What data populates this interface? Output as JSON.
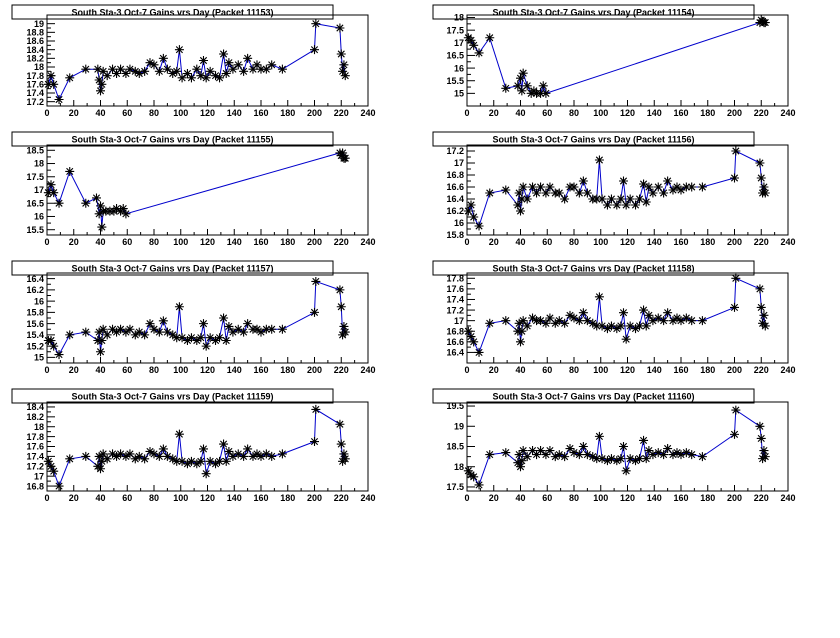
{
  "chart_data": [
    {
      "type": "line",
      "title": "South Sta-3 Oct-7 Gains vrs Day (Packet 11153)",
      "xlim": [
        0,
        240
      ],
      "xticks": [
        0,
        20,
        40,
        60,
        80,
        100,
        120,
        140,
        160,
        180,
        200,
        220,
        240
      ],
      "ylim": [
        17.1,
        19.2
      ],
      "yticks": [
        "17.2",
        "17.4",
        "17.6",
        "17.8",
        "18",
        "18.2",
        "18.4",
        "18.6",
        "18.8",
        "19"
      ],
      "ytick_values": [
        17.2,
        17.4,
        17.6,
        17.8,
        18.0,
        18.2,
        18.4,
        18.6,
        18.8,
        19.0
      ],
      "x": [
        1,
        3,
        5,
        9,
        17,
        29,
        38,
        39,
        40,
        41,
        42,
        45,
        49,
        52,
        55,
        59,
        62,
        66,
        69,
        73,
        77,
        80,
        84,
        87,
        90,
        94,
        97,
        99,
        101,
        105,
        108,
        112,
        115,
        117,
        119,
        122,
        126,
        129,
        132,
        134,
        136,
        139,
        143,
        147,
        150,
        154,
        157,
        160,
        164,
        168,
        176,
        200,
        201,
        219,
        220,
        221,
        222,
        223
      ],
      "y": [
        17.6,
        17.8,
        17.6,
        17.25,
        17.75,
        17.95,
        17.95,
        17.7,
        17.45,
        17.6,
        17.9,
        17.8,
        17.95,
        17.85,
        17.95,
        17.85,
        17.95,
        17.9,
        17.85,
        17.9,
        18.1,
        18.05,
        17.9,
        18.2,
        17.95,
        17.85,
        17.9,
        18.4,
        17.75,
        17.85,
        17.75,
        17.95,
        17.8,
        18.15,
        17.75,
        17.9,
        17.8,
        17.75,
        18.3,
        17.85,
        18.1,
        17.95,
        18.05,
        17.9,
        18.2,
        17.95,
        18.05,
        17.95,
        17.95,
        18.05,
        17.95,
        18.4,
        19.0,
        18.9,
        18.3,
        17.9,
        18.05,
        17.8
      ]
    },
    {
      "type": "line",
      "title": "South Sta-3 Oct-7 Gains vrs Day (Packet 11154)",
      "xlim": [
        0,
        240
      ],
      "xticks": [
        0,
        20,
        40,
        60,
        80,
        100,
        120,
        140,
        160,
        180,
        200,
        220,
        240
      ],
      "ylim": [
        14.5,
        18.1
      ],
      "yticks": [
        "15",
        "15.5",
        "16",
        "16.5",
        "17",
        "17.5",
        "18"
      ],
      "ytick_values": [
        15,
        15.5,
        16,
        16.5,
        17,
        17.5,
        18
      ],
      "x": [
        1,
        3,
        5,
        9,
        17,
        29,
        38,
        40,
        41,
        42,
        45,
        48,
        50,
        52,
        55,
        57,
        59,
        219,
        220,
        221,
        222,
        223
      ],
      "y": [
        17.2,
        17.1,
        16.9,
        16.6,
        17.2,
        15.2,
        15.3,
        15.6,
        15.1,
        15.8,
        15.3,
        15.0,
        15.1,
        15.0,
        15.0,
        15.3,
        15.0,
        17.8,
        17.9,
        17.85,
        17.8,
        17.8
      ]
    },
    {
      "type": "line",
      "title": "South Sta-3 Oct-7 Gains vrs Day (Packet 11155)",
      "xlim": [
        0,
        240
      ],
      "xticks": [
        0,
        20,
        40,
        60,
        80,
        100,
        120,
        140,
        160,
        180,
        200,
        220,
        240
      ],
      "ylim": [
        15.3,
        18.7
      ],
      "yticks": [
        "15.5",
        "16",
        "16.5",
        "17",
        "17.5",
        "18",
        "18.5"
      ],
      "ytick_values": [
        15.5,
        16,
        16.5,
        17,
        17.5,
        18,
        18.5
      ],
      "x": [
        1,
        3,
        5,
        9,
        17,
        29,
        37,
        39,
        40,
        41,
        42,
        44,
        47,
        50,
        52,
        55,
        57,
        59,
        219,
        220,
        221,
        222,
        223
      ],
      "y": [
        16.9,
        17.2,
        16.9,
        16.5,
        17.7,
        16.5,
        16.7,
        16.1,
        16.4,
        15.6,
        16.2,
        16.2,
        16.2,
        16.2,
        16.3,
        16.2,
        16.3,
        16.1,
        18.4,
        18.3,
        18.4,
        18.2,
        18.2
      ]
    },
    {
      "type": "line",
      "title": "South Sta-3 Oct-7 Gains vrs Day (Packet 11156)",
      "xlim": [
        0,
        240
      ],
      "xticks": [
        0,
        20,
        40,
        60,
        80,
        100,
        120,
        140,
        160,
        180,
        200,
        220,
        240
      ],
      "ylim": [
        15.8,
        17.3
      ],
      "yticks": [
        "15.8",
        "16",
        "16.2",
        "16.4",
        "16.6",
        "16.8",
        "17",
        "17.2"
      ],
      "ytick_values": [
        15.8,
        16.0,
        16.2,
        16.4,
        16.6,
        16.8,
        17.0,
        17.2
      ],
      "x": [
        1,
        3,
        5,
        9,
        17,
        29,
        38,
        39,
        40,
        41,
        42,
        45,
        49,
        52,
        55,
        59,
        62,
        66,
        69,
        73,
        77,
        80,
        84,
        87,
        90,
        94,
        97,
        99,
        101,
        105,
        108,
        112,
        115,
        117,
        119,
        122,
        126,
        129,
        132,
        134,
        136,
        139,
        143,
        147,
        150,
        154,
        157,
        160,
        164,
        168,
        176,
        200,
        201,
        219,
        220,
        221,
        222,
        223
      ],
      "y": [
        16.2,
        16.3,
        16.1,
        15.95,
        16.5,
        16.55,
        16.3,
        16.5,
        16.2,
        16.4,
        16.6,
        16.4,
        16.6,
        16.5,
        16.6,
        16.5,
        16.6,
        16.5,
        16.5,
        16.4,
        16.6,
        16.6,
        16.5,
        16.7,
        16.5,
        16.4,
        16.4,
        17.05,
        16.4,
        16.3,
        16.4,
        16.3,
        16.4,
        16.7,
        16.3,
        16.4,
        16.3,
        16.4,
        16.65,
        16.35,
        16.6,
        16.5,
        16.6,
        16.5,
        16.7,
        16.55,
        16.6,
        16.55,
        16.6,
        16.6,
        16.6,
        16.75,
        17.2,
        17.0,
        16.75,
        16.5,
        16.6,
        16.5
      ]
    },
    {
      "type": "line",
      "title": "South Sta-3 Oct-7 Gains vrs Day (Packet 11157)",
      "xlim": [
        0,
        240
      ],
      "xticks": [
        0,
        20,
        40,
        60,
        80,
        100,
        120,
        140,
        160,
        180,
        200,
        220,
        240
      ],
      "ylim": [
        14.9,
        16.5
      ],
      "yticks": [
        "15",
        "15.2",
        "15.4",
        "15.6",
        "15.8",
        "16",
        "16.2",
        "16.4"
      ],
      "ytick_values": [
        15.0,
        15.2,
        15.4,
        15.6,
        15.8,
        16.0,
        16.2,
        16.4
      ],
      "x": [
        1,
        3,
        5,
        9,
        17,
        29,
        38,
        39,
        40,
        41,
        42,
        45,
        49,
        52,
        55,
        59,
        62,
        66,
        69,
        73,
        77,
        80,
        84,
        87,
        90,
        94,
        97,
        99,
        101,
        105,
        108,
        112,
        115,
        117,
        119,
        122,
        126,
        129,
        132,
        134,
        136,
        139,
        143,
        147,
        150,
        154,
        157,
        160,
        164,
        168,
        176,
        200,
        201,
        219,
        220,
        221,
        222,
        223
      ],
      "y": [
        15.3,
        15.3,
        15.2,
        15.05,
        15.4,
        15.45,
        15.3,
        15.45,
        15.1,
        15.3,
        15.5,
        15.4,
        15.5,
        15.45,
        15.5,
        15.45,
        15.5,
        15.4,
        15.45,
        15.4,
        15.6,
        15.5,
        15.45,
        15.65,
        15.45,
        15.4,
        15.35,
        15.9,
        15.35,
        15.3,
        15.35,
        15.3,
        15.35,
        15.6,
        15.2,
        15.35,
        15.3,
        15.35,
        15.7,
        15.3,
        15.55,
        15.45,
        15.5,
        15.45,
        15.6,
        15.5,
        15.5,
        15.45,
        15.5,
        15.5,
        15.5,
        15.8,
        16.35,
        16.2,
        15.9,
        15.4,
        15.55,
        15.45
      ]
    },
    {
      "type": "line",
      "title": "South Sta-3 Oct-7 Gains vrs Day (Packet 11158)",
      "xlim": [
        0,
        240
      ],
      "xticks": [
        0,
        20,
        40,
        60,
        80,
        100,
        120,
        140,
        160,
        180,
        200,
        220,
        240
      ],
      "ylim": [
        16.2,
        17.9
      ],
      "yticks": [
        "16.4",
        "16.6",
        "16.8",
        "17",
        "17.2",
        "17.4",
        "17.6",
        "17.8"
      ],
      "ytick_values": [
        16.4,
        16.6,
        16.8,
        17.0,
        17.2,
        17.4,
        17.6,
        17.8
      ],
      "x": [
        1,
        3,
        5,
        9,
        17,
        29,
        38,
        39,
        40,
        41,
        42,
        45,
        49,
        52,
        55,
        59,
        62,
        66,
        69,
        73,
        77,
        80,
        84,
        87,
        90,
        94,
        97,
        99,
        101,
        105,
        108,
        112,
        115,
        117,
        119,
        122,
        126,
        129,
        132,
        134,
        136,
        139,
        143,
        147,
        150,
        154,
        157,
        160,
        164,
        168,
        176,
        200,
        201,
        219,
        220,
        221,
        222,
        223
      ],
      "y": [
        16.8,
        16.7,
        16.6,
        16.4,
        16.95,
        17.0,
        16.8,
        16.95,
        16.6,
        16.8,
        17.0,
        16.9,
        17.05,
        17.0,
        17.0,
        16.95,
        17.05,
        16.95,
        17.0,
        16.95,
        17.1,
        17.05,
        17.0,
        17.15,
        17.0,
        16.95,
        16.9,
        17.45,
        16.9,
        16.85,
        16.9,
        16.85,
        16.9,
        17.15,
        16.65,
        16.9,
        16.85,
        16.9,
        17.2,
        16.9,
        17.1,
        17.0,
        17.05,
        17.0,
        17.15,
        17.0,
        17.05,
        17.0,
        17.05,
        17.0,
        17.0,
        17.25,
        17.8,
        17.6,
        17.25,
        16.95,
        17.1,
        16.9
      ]
    },
    {
      "type": "line",
      "title": "South Sta-3 Oct-7 Gains vrs Day (Packet 11159)",
      "xlim": [
        0,
        240
      ],
      "xticks": [
        0,
        20,
        40,
        60,
        80,
        100,
        120,
        140,
        160,
        180,
        200,
        220,
        240
      ],
      "ylim": [
        16.7,
        18.5
      ],
      "yticks": [
        "16.8",
        "17",
        "17.2",
        "17.4",
        "17.6",
        "17.8",
        "18",
        "18.2",
        "18.4"
      ],
      "ytick_values": [
        16.8,
        17.0,
        17.2,
        17.4,
        17.6,
        17.8,
        18.0,
        18.2,
        18.4
      ],
      "x": [
        1,
        3,
        5,
        9,
        17,
        29,
        38,
        39,
        40,
        41,
        42,
        45,
        49,
        52,
        55,
        59,
        62,
        66,
        69,
        73,
        77,
        80,
        84,
        87,
        90,
        94,
        97,
        99,
        101,
        105,
        108,
        112,
        115,
        117,
        119,
        122,
        126,
        129,
        132,
        134,
        136,
        139,
        143,
        147,
        150,
        154,
        157,
        160,
        164,
        168,
        176,
        200,
        201,
        219,
        220,
        221,
        222,
        223
      ],
      "y": [
        17.3,
        17.2,
        17.1,
        16.8,
        17.35,
        17.4,
        17.2,
        17.4,
        17.15,
        17.3,
        17.45,
        17.35,
        17.45,
        17.4,
        17.45,
        17.4,
        17.45,
        17.35,
        17.4,
        17.35,
        17.5,
        17.45,
        17.4,
        17.55,
        17.4,
        17.35,
        17.3,
        17.85,
        17.3,
        17.25,
        17.3,
        17.25,
        17.3,
        17.55,
        17.05,
        17.3,
        17.25,
        17.3,
        17.65,
        17.3,
        17.5,
        17.4,
        17.45,
        17.4,
        17.55,
        17.4,
        17.45,
        17.4,
        17.45,
        17.4,
        17.45,
        17.7,
        18.35,
        18.05,
        17.65,
        17.3,
        17.45,
        17.35
      ]
    },
    {
      "type": "line",
      "title": "South Sta-3 Oct-7 Gains vrs Day (Packet 11160)",
      "xlim": [
        0,
        240
      ],
      "xticks": [
        0,
        20,
        40,
        60,
        80,
        100,
        120,
        140,
        160,
        180,
        200,
        220,
        240
      ],
      "ylim": [
        17.4,
        19.6
      ],
      "yticks": [
        "17.5",
        "18",
        "18.5",
        "19",
        "19.5"
      ],
      "ytick_values": [
        17.5,
        18.0,
        18.5,
        19.0,
        19.5
      ],
      "x": [
        1,
        3,
        5,
        9,
        17,
        29,
        38,
        39,
        40,
        41,
        42,
        45,
        49,
        52,
        55,
        59,
        62,
        66,
        69,
        73,
        77,
        80,
        84,
        87,
        90,
        94,
        97,
        99,
        101,
        105,
        108,
        112,
        115,
        117,
        119,
        122,
        126,
        129,
        132,
        134,
        136,
        139,
        143,
        147,
        150,
        154,
        157,
        160,
        164,
        168,
        176,
        200,
        201,
        219,
        220,
        221,
        222,
        223
      ],
      "y": [
        17.9,
        17.8,
        17.75,
        17.55,
        18.3,
        18.35,
        18.1,
        18.3,
        18.0,
        18.15,
        18.4,
        18.25,
        18.4,
        18.3,
        18.4,
        18.3,
        18.4,
        18.25,
        18.3,
        18.25,
        18.45,
        18.35,
        18.3,
        18.5,
        18.3,
        18.25,
        18.2,
        18.75,
        18.2,
        18.15,
        18.2,
        18.15,
        18.2,
        18.5,
        17.9,
        18.2,
        18.15,
        18.2,
        18.65,
        18.2,
        18.4,
        18.3,
        18.35,
        18.3,
        18.45,
        18.3,
        18.35,
        18.3,
        18.35,
        18.3,
        18.25,
        18.8,
        19.4,
        19.0,
        18.7,
        18.2,
        18.4,
        18.25
      ]
    }
  ]
}
